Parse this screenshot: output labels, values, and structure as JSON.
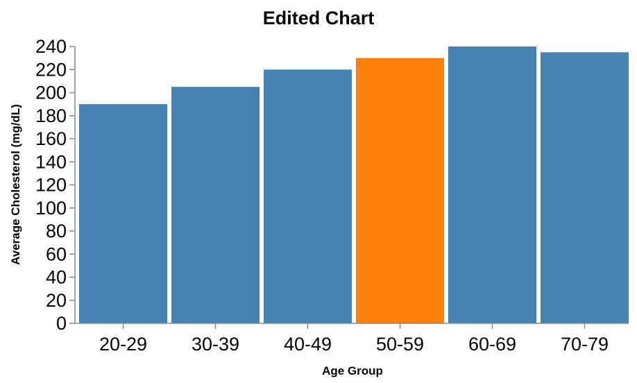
{
  "chart_data": {
    "type": "bar",
    "title": "Edited Chart",
    "xlabel": "Age Group",
    "ylabel": "Average Cholesterol (mg/dL)",
    "categories": [
      "20-29",
      "30-39",
      "40-49",
      "50-59",
      "60-69",
      "70-79"
    ],
    "values": [
      190,
      205,
      220,
      230,
      240,
      235
    ],
    "ylim": [
      0,
      240
    ],
    "yticks": [
      0,
      20,
      40,
      60,
      80,
      100,
      120,
      140,
      160,
      180,
      200,
      220,
      240
    ],
    "grid": false,
    "highlight_index": 3,
    "colors": {
      "bar": "#4682b4",
      "highlight": "#ff7f0e",
      "axis": "#888888",
      "text": "#000000"
    }
  }
}
